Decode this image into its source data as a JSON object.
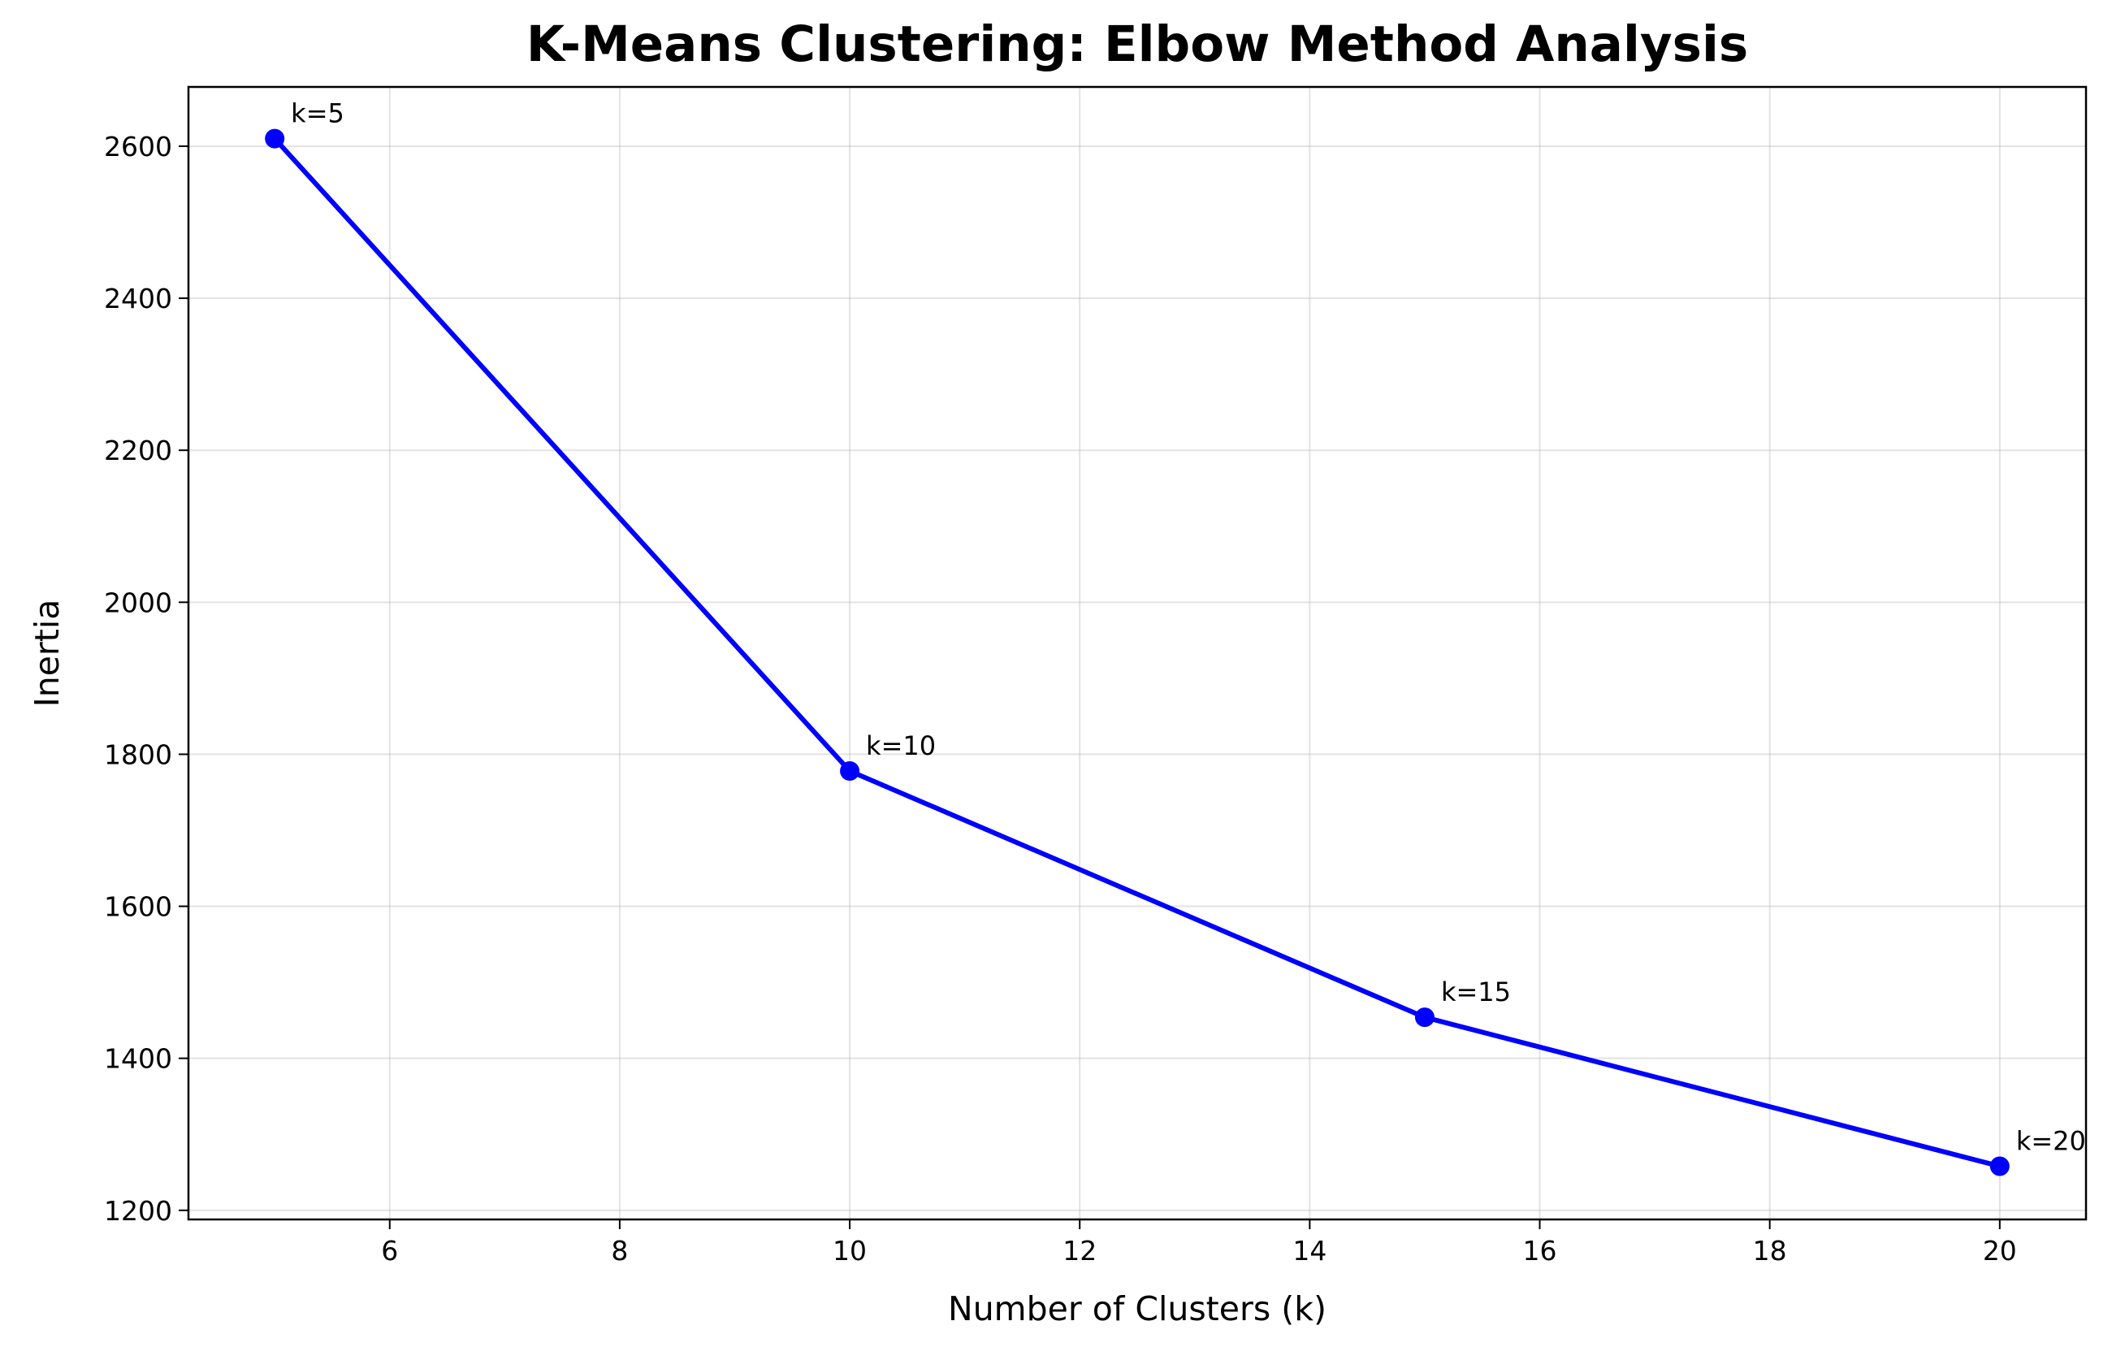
{
  "chart_data": {
    "type": "line",
    "title": "K-Means Clustering: Elbow Method Analysis",
    "xlabel": "Number of Clusters (k)",
    "ylabel": "Inertia",
    "x": [
      5,
      10,
      15,
      20
    ],
    "series": [
      {
        "values": [
          2610,
          1778,
          1454,
          1258
        ],
        "color": "#0000ff",
        "marker": "circle"
      }
    ],
    "point_labels": [
      "k=5",
      "k=10",
      "k=15",
      "k=20"
    ],
    "xlim": [
      4.25,
      20.75
    ],
    "ylim": [
      1188,
      2678
    ],
    "x_ticks": [
      6,
      8,
      10,
      12,
      14,
      16,
      18,
      20
    ],
    "y_ticks": [
      1200,
      1400,
      1600,
      1800,
      2000,
      2200,
      2400,
      2600
    ],
    "grid": true
  }
}
